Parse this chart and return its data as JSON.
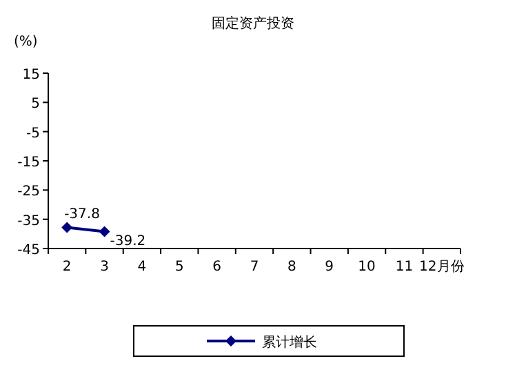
{
  "chart_data": {
    "type": "line",
    "title": "固定资产投资",
    "ylabel": "(%)",
    "categories": [
      "2",
      "3",
      "4",
      "5",
      "6",
      "7",
      "8",
      "9",
      "10",
      "11",
      "12月份"
    ],
    "series": [
      {
        "name": "累计增长",
        "color": "#000080",
        "values": [
          -37.8,
          -39.2,
          null,
          null,
          null,
          null,
          null,
          null,
          null,
          null,
          null
        ]
      }
    ],
    "ylim": [
      -45,
      15
    ],
    "yticks": [
      -45,
      -35,
      -25,
      -15,
      -5,
      5,
      15
    ],
    "marker": "diamond",
    "data_labels": true,
    "legend": "bottom",
    "grid": false
  }
}
